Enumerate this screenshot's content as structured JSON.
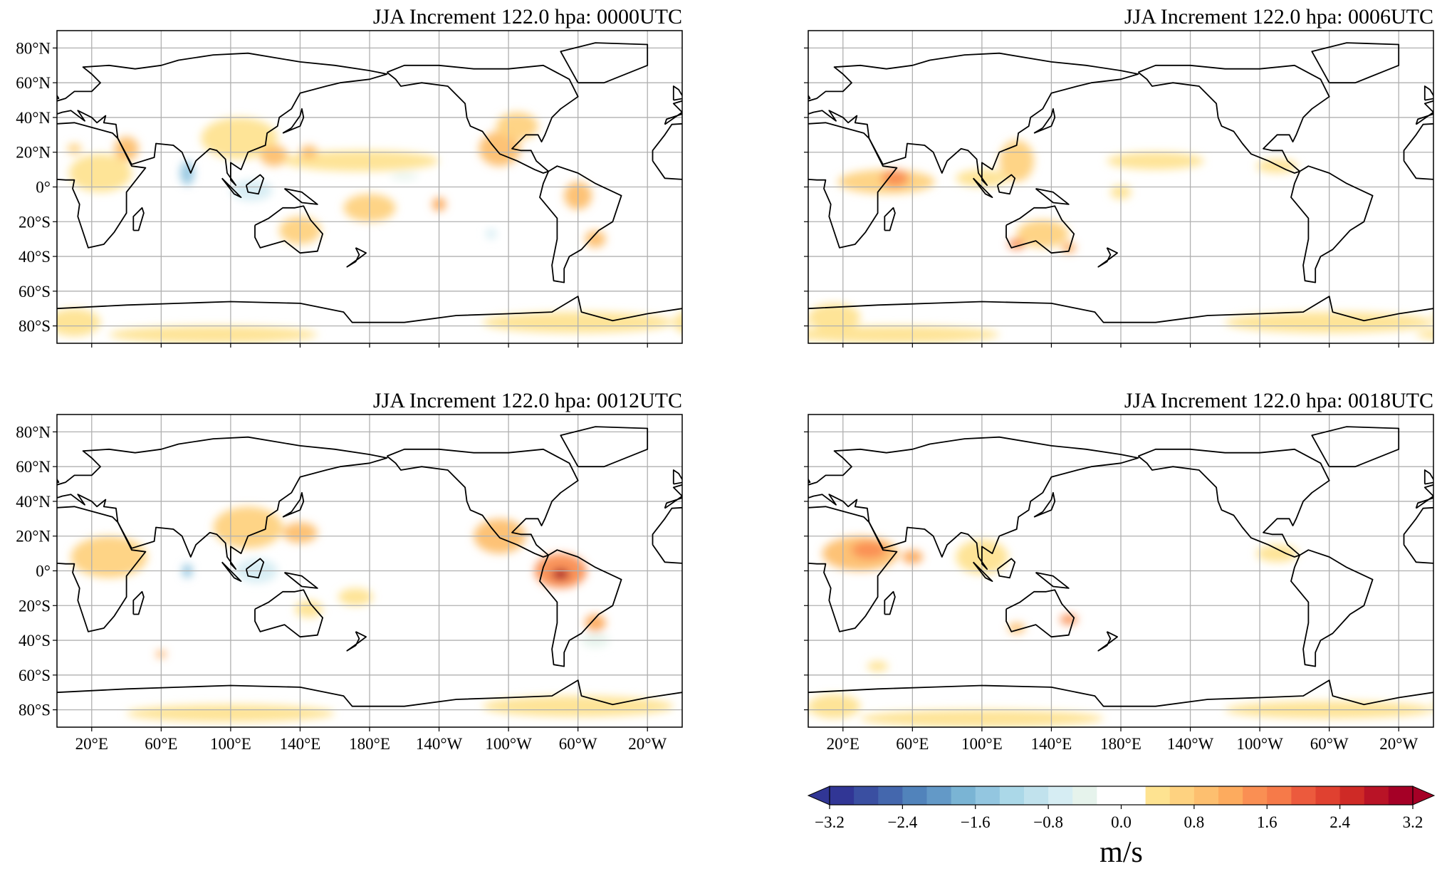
{
  "chart_data": [
    {
      "type": "heatmap",
      "title": "JJA Increment 122.0 hpa: 0000UTC",
      "xlim": [
        0,
        360
      ],
      "ylim": [
        -90,
        90
      ],
      "grid": true,
      "features": [
        {
          "lon": 25,
          "lat": 8,
          "rlon": 18,
          "rlat": 11,
          "value": 0.5
        },
        {
          "lon": 40,
          "lat": 22,
          "rlon": 7,
          "rlat": 7,
          "value": 0.9
        },
        {
          "lon": 10,
          "lat": 22,
          "rlon": 4,
          "rlat": 3,
          "value": 0.6
        },
        {
          "lon": 75,
          "lat": 8,
          "rlon": 4,
          "rlat": 7,
          "value": -1.6
        },
        {
          "lon": 112,
          "lat": -2,
          "rlon": 12,
          "rlat": 6,
          "value": -0.6
        },
        {
          "lon": 105,
          "lat": 28,
          "rlon": 22,
          "rlat": 12,
          "value": 0.5
        },
        {
          "lon": 125,
          "lat": 18,
          "rlon": 8,
          "rlat": 6,
          "value": 0.8
        },
        {
          "lon": 175,
          "lat": 15,
          "rlon": 45,
          "rlat": 6,
          "value": 0.4
        },
        {
          "lon": 145,
          "lat": 20,
          "rlon": 5,
          "rlat": 4,
          "value": 0.9
        },
        {
          "lon": 200,
          "lat": 6,
          "rlon": 8,
          "rlat": 2,
          "value": -0.4
        },
        {
          "lon": 255,
          "lat": 22,
          "rlon": 12,
          "rlat": 10,
          "value": 1.0
        },
        {
          "lon": 265,
          "lat": 35,
          "rlon": 12,
          "rlat": 8,
          "value": 0.6
        },
        {
          "lon": 300,
          "lat": -5,
          "rlon": 8,
          "rlat": 8,
          "value": 0.9
        },
        {
          "lon": 310,
          "lat": -30,
          "rlon": 6,
          "rlat": 5,
          "value": 1.0
        },
        {
          "lon": 140,
          "lat": -25,
          "rlon": 12,
          "rlat": 8,
          "value": 0.7
        },
        {
          "lon": 180,
          "lat": -12,
          "rlon": 15,
          "rlat": 8,
          "value": 0.7
        },
        {
          "lon": 220,
          "lat": -10,
          "rlon": 4,
          "rlat": 4,
          "value": 1.3
        },
        {
          "lon": 250,
          "lat": -27,
          "rlon": 3,
          "rlat": 3,
          "value": -0.6
        },
        {
          "lon": 90,
          "lat": -85,
          "rlon": 60,
          "rlat": 5,
          "value": 0.4
        },
        {
          "lon": 300,
          "lat": -78,
          "rlon": 55,
          "rlat": 6,
          "value": 0.4
        },
        {
          "lon": 10,
          "lat": -78,
          "rlon": 15,
          "rlat": 8,
          "value": 0.4
        }
      ]
    },
    {
      "type": "heatmap",
      "title": "JJA Increment 122.0 hpa: 0006UTC",
      "xlim": [
        0,
        360
      ],
      "ylim": [
        -90,
        90
      ],
      "grid": true,
      "features": [
        {
          "lon": 45,
          "lat": 3,
          "rlon": 28,
          "rlat": 7,
          "value": 0.6
        },
        {
          "lon": 50,
          "lat": 5,
          "rlon": 8,
          "rlat": 5,
          "value": 1.5
        },
        {
          "lon": 120,
          "lat": 15,
          "rlon": 10,
          "rlat": 12,
          "value": 0.7
        },
        {
          "lon": 100,
          "lat": 5,
          "rlon": 15,
          "rlat": 5,
          "value": 0.4
        },
        {
          "lon": 200,
          "lat": 15,
          "rlon": 28,
          "rlat": 5,
          "value": 0.4
        },
        {
          "lon": 135,
          "lat": -27,
          "rlon": 15,
          "rlat": 8,
          "value": 0.6
        },
        {
          "lon": 120,
          "lat": -33,
          "rlon": 5,
          "rlat": 3,
          "value": 1.5
        },
        {
          "lon": 150,
          "lat": -35,
          "rlon": 4,
          "rlat": 3,
          "value": 1.2
        },
        {
          "lon": 180,
          "lat": -3,
          "rlon": 6,
          "rlat": 4,
          "value": 0.4
        },
        {
          "lon": 270,
          "lat": 12,
          "rlon": 12,
          "rlat": 4,
          "value": 0.5
        },
        {
          "lon": 50,
          "lat": -85,
          "rlon": 60,
          "rlat": 5,
          "value": 0.4
        },
        {
          "lon": 300,
          "lat": -78,
          "rlon": 60,
          "rlat": 6,
          "value": 0.4
        },
        {
          "lon": 15,
          "lat": -75,
          "rlon": 15,
          "rlat": 8,
          "value": 0.4
        }
      ]
    },
    {
      "type": "heatmap",
      "title": "JJA Increment 122.0 hpa: 0012UTC",
      "xlim": [
        0,
        360
      ],
      "ylim": [
        -90,
        90
      ],
      "grid": true,
      "features": [
        {
          "lon": 30,
          "lat": 8,
          "rlon": 22,
          "rlat": 12,
          "value": 0.6
        },
        {
          "lon": 110,
          "lat": 25,
          "rlon": 20,
          "rlat": 12,
          "value": 0.6
        },
        {
          "lon": 140,
          "lat": 22,
          "rlon": 10,
          "rlat": 6,
          "value": 0.9
        },
        {
          "lon": 75,
          "lat": 0,
          "rlon": 3,
          "rlat": 4,
          "value": -1.4
        },
        {
          "lon": 115,
          "lat": 0,
          "rlon": 12,
          "rlat": 7,
          "value": -0.7
        },
        {
          "lon": 255,
          "lat": 20,
          "rlon": 15,
          "rlat": 10,
          "value": 0.9
        },
        {
          "lon": 290,
          "lat": 0,
          "rlon": 15,
          "rlat": 10,
          "value": 1.4
        },
        {
          "lon": 290,
          "lat": -2,
          "rlon": 5,
          "rlat": 3,
          "value": 3.0
        },
        {
          "lon": 310,
          "lat": -30,
          "rlon": 6,
          "rlat": 5,
          "value": 1.3
        },
        {
          "lon": 310,
          "lat": -40,
          "rlon": 8,
          "rlat": 4,
          "value": -0.4
        },
        {
          "lon": 145,
          "lat": -22,
          "rlon": 8,
          "rlat": 5,
          "value": 0.5
        },
        {
          "lon": 172,
          "lat": -15,
          "rlon": 10,
          "rlat": 5,
          "value": 0.5
        },
        {
          "lon": 60,
          "lat": -48,
          "rlon": 3,
          "rlat": 2,
          "value": 1.2
        },
        {
          "lon": 100,
          "lat": -82,
          "rlon": 60,
          "rlat": 5,
          "value": 0.4
        },
        {
          "lon": 300,
          "lat": -78,
          "rlon": 55,
          "rlat": 6,
          "value": 0.4
        }
      ]
    },
    {
      "type": "heatmap",
      "title": "JJA Increment 122.0 hpa: 0018UTC",
      "xlim": [
        0,
        360
      ],
      "ylim": [
        -90,
        90
      ],
      "grid": true,
      "features": [
        {
          "lon": 30,
          "lat": 10,
          "rlon": 22,
          "rlat": 10,
          "value": 0.8
        },
        {
          "lon": 35,
          "lat": 12,
          "rlon": 10,
          "rlat": 5,
          "value": 1.5
        },
        {
          "lon": 60,
          "lat": 8,
          "rlon": 6,
          "rlat": 4,
          "value": 1.2
        },
        {
          "lon": 100,
          "lat": 8,
          "rlon": 15,
          "rlat": 10,
          "value": 0.5
        },
        {
          "lon": 150,
          "lat": -28,
          "rlon": 5,
          "rlat": 3,
          "value": 1.5
        },
        {
          "lon": 120,
          "lat": -33,
          "rlon": 5,
          "rlat": 3,
          "value": 1.0
        },
        {
          "lon": 270,
          "lat": 10,
          "rlon": 12,
          "rlat": 5,
          "value": 0.5
        },
        {
          "lon": 40,
          "lat": -55,
          "rlon": 6,
          "rlat": 3,
          "value": 0.4
        },
        {
          "lon": 100,
          "lat": -85,
          "rlon": 70,
          "rlat": 5,
          "value": 0.4
        },
        {
          "lon": 300,
          "lat": -80,
          "rlon": 60,
          "rlat": 5,
          "value": 0.4
        },
        {
          "lon": 15,
          "lat": -78,
          "rlon": 15,
          "rlat": 7,
          "value": 0.4
        }
      ]
    }
  ],
  "axes": {
    "lat_ticks": [
      80,
      60,
      40,
      20,
      0,
      -20,
      -40,
      -60,
      -80
    ],
    "lat_labels": [
      "80°N",
      "60°N",
      "40°N",
      "20°N",
      "0°",
      "20°S",
      "40°S",
      "60°S",
      "80°S"
    ],
    "lon_ticks": [
      20,
      60,
      100,
      140,
      180,
      220,
      260,
      300,
      340
    ],
    "lon_labels": [
      "20°E",
      "60°E",
      "100°E",
      "140°E",
      "180°E",
      "140°W",
      "100°W",
      "60°W",
      "20°W"
    ]
  },
  "colorbar": {
    "label": "m/s",
    "range": [
      -3.2,
      3.2
    ],
    "ticks": [
      -3.2,
      -2.4,
      -1.6,
      -0.8,
      0.0,
      0.8,
      1.6,
      2.4,
      3.2
    ],
    "tick_labels": [
      "−3.2",
      "−2.4",
      "−1.6",
      "−0.8",
      "0.0",
      "0.8",
      "1.6",
      "2.4",
      "3.2"
    ],
    "colors": [
      "#313695",
      "#3a4fa1",
      "#4467ad",
      "#5183bb",
      "#6399c7",
      "#7ab4d4",
      "#93c6e0",
      "#abd8e8",
      "#c1e2ed",
      "#d6edf3",
      "#e6f3ec",
      "#ffffff",
      "#ffffff",
      "#fee391",
      "#fed280",
      "#fdbf6f",
      "#fdab5e",
      "#fa8f53",
      "#f67a49",
      "#ec5a3d",
      "#e04130",
      "#cf2a26",
      "#b91326",
      "#a50026"
    ],
    "extend_colors": [
      "#313695",
      "#a50026"
    ]
  }
}
